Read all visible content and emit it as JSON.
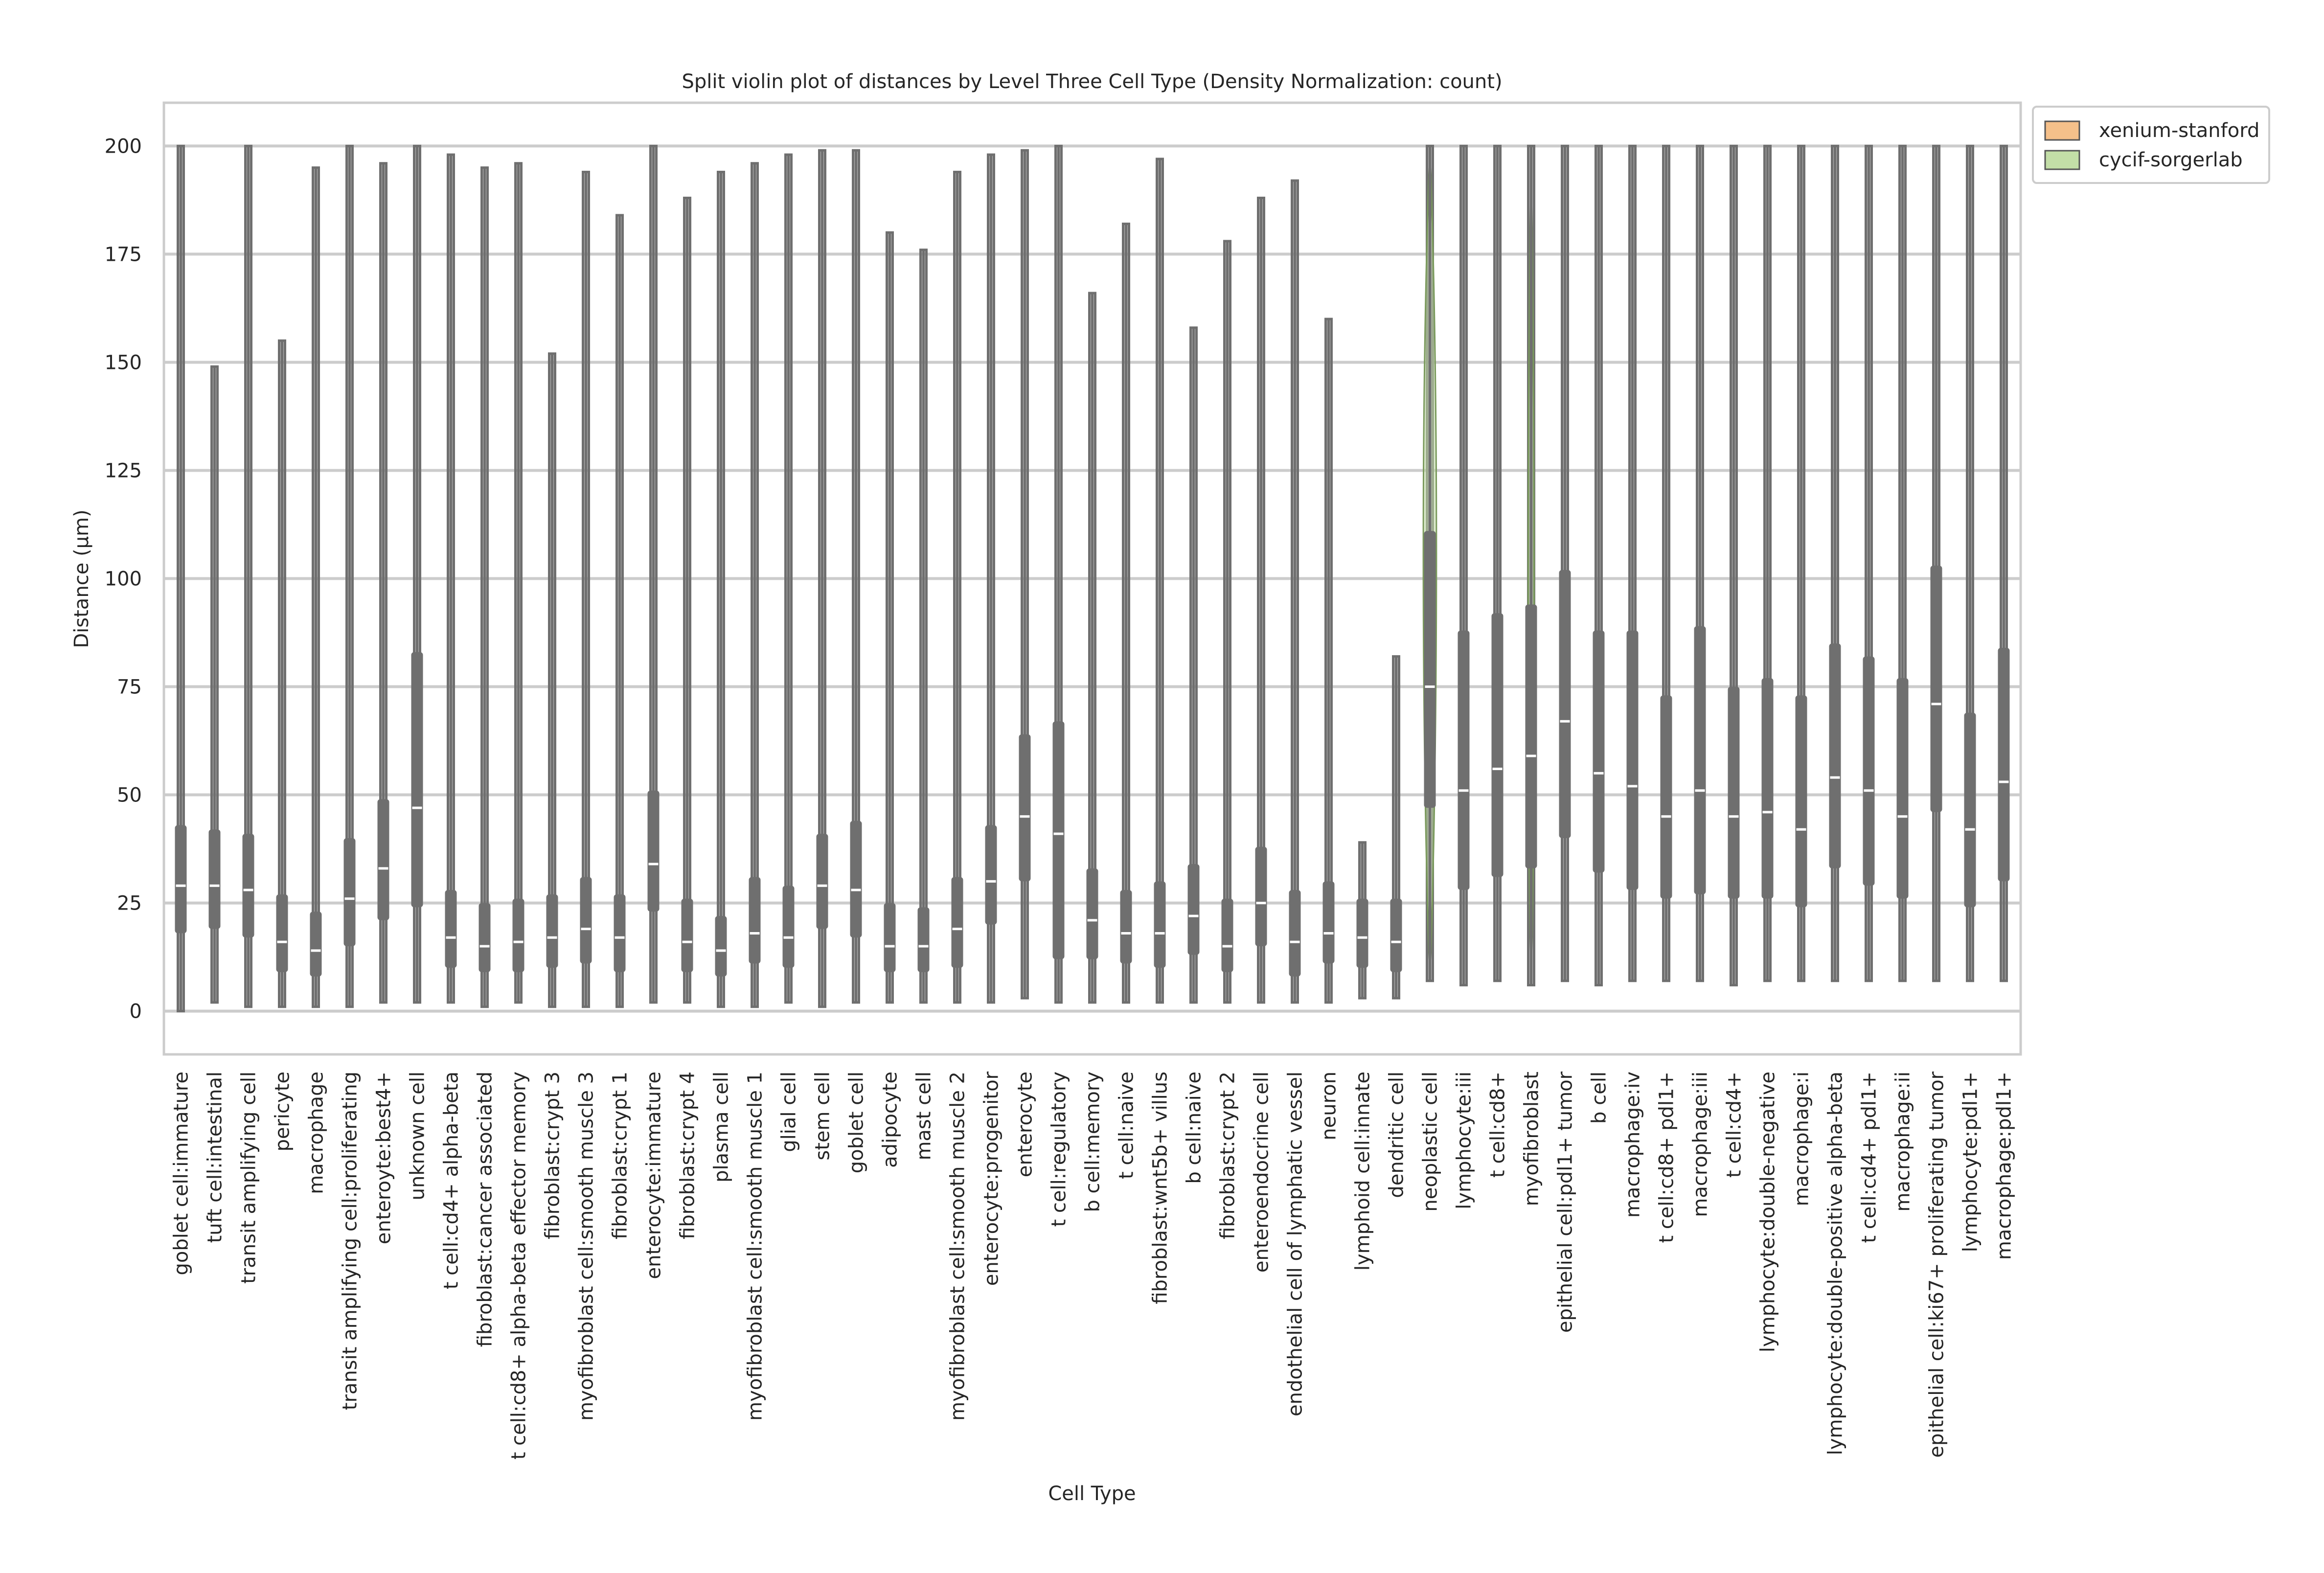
{
  "chart_data": {
    "type": "violin",
    "title": "Split violin plot of distances by Level Three Cell Type (Density Normalization: count)",
    "xlabel": "Cell Type",
    "ylabel": "Distance (µm)",
    "ylim": [
      -10,
      210
    ],
    "yticks": [
      0,
      25,
      50,
      75,
      100,
      125,
      150,
      175,
      200
    ],
    "grid": true,
    "legend_position": "top-right outside",
    "series": [
      {
        "name": "xenium-stanford",
        "color": "#f5c08a"
      },
      {
        "name": "cycif-sorgerlab",
        "color": "#c3dea7"
      }
    ],
    "box_color": "#6f6f6f",
    "categories": [
      {
        "label": "goblet cell:immature",
        "min": 0,
        "q1": 18,
        "median": 29,
        "q3": 43,
        "max": 200
      },
      {
        "label": "tuft cell:intestinal",
        "min": 2,
        "q1": 19,
        "median": 29,
        "q3": 42,
        "max": 149
      },
      {
        "label": "transit amplifying cell",
        "min": 1,
        "q1": 17,
        "median": 28,
        "q3": 41,
        "max": 200
      },
      {
        "label": "pericyte",
        "min": 1,
        "q1": 9,
        "median": 16,
        "q3": 27,
        "max": 155
      },
      {
        "label": "macrophage",
        "min": 1,
        "q1": 8,
        "median": 14,
        "q3": 23,
        "max": 195
      },
      {
        "label": "transit amplifying cell:proliferating",
        "min": 1,
        "q1": 15,
        "median": 26,
        "q3": 40,
        "max": 200
      },
      {
        "label": "enteroyte:best4+",
        "min": 2,
        "q1": 21,
        "median": 33,
        "q3": 49,
        "max": 196
      },
      {
        "label": "unknown cell",
        "min": 2,
        "q1": 24,
        "median": 47,
        "q3": 83,
        "max": 200
      },
      {
        "label": "t cell:cd4+ alpha-beta",
        "min": 2,
        "q1": 10,
        "median": 17,
        "q3": 28,
        "max": 198
      },
      {
        "label": "fibroblast:cancer associated",
        "min": 1,
        "q1": 9,
        "median": 15,
        "q3": 25,
        "max": 195
      },
      {
        "label": "t cell:cd8+ alpha-beta effector memory",
        "min": 2,
        "q1": 9,
        "median": 16,
        "q3": 26,
        "max": 196
      },
      {
        "label": "fibroblast:crypt 3",
        "min": 1,
        "q1": 10,
        "median": 17,
        "q3": 27,
        "max": 152
      },
      {
        "label": "myofibroblast cell:smooth muscle 3",
        "min": 1,
        "q1": 11,
        "median": 19,
        "q3": 31,
        "max": 194
      },
      {
        "label": "fibroblast:crypt 1",
        "min": 1,
        "q1": 9,
        "median": 17,
        "q3": 27,
        "max": 184
      },
      {
        "label": "enterocyte:immature",
        "min": 2,
        "q1": 23,
        "median": 34,
        "q3": 51,
        "max": 200
      },
      {
        "label": "fibroblast:crypt 4",
        "min": 2,
        "q1": 9,
        "median": 16,
        "q3": 26,
        "max": 188
      },
      {
        "label": "plasma cell",
        "min": 1,
        "q1": 8,
        "median": 14,
        "q3": 22,
        "max": 194
      },
      {
        "label": "myofibroblast cell:smooth muscle 1",
        "min": 1,
        "q1": 11,
        "median": 18,
        "q3": 31,
        "max": 196
      },
      {
        "label": "glial cell",
        "min": 2,
        "q1": 10,
        "median": 17,
        "q3": 29,
        "max": 198
      },
      {
        "label": "stem cell",
        "min": 1,
        "q1": 19,
        "median": 29,
        "q3": 41,
        "max": 199
      },
      {
        "label": "goblet cell",
        "min": 2,
        "q1": 17,
        "median": 28,
        "q3": 44,
        "max": 199
      },
      {
        "label": "adipocyte",
        "min": 2,
        "q1": 9,
        "median": 15,
        "q3": 25,
        "max": 180
      },
      {
        "label": "mast cell",
        "min": 2,
        "q1": 9,
        "median": 15,
        "q3": 24,
        "max": 176
      },
      {
        "label": "myofibroblast cell:smooth muscle 2",
        "min": 2,
        "q1": 10,
        "median": 19,
        "q3": 31,
        "max": 194
      },
      {
        "label": "enterocyte:progenitor",
        "min": 2,
        "q1": 20,
        "median": 30,
        "q3": 43,
        "max": 198
      },
      {
        "label": "enterocyte",
        "min": 3,
        "q1": 30,
        "median": 45,
        "q3": 64,
        "max": 199
      },
      {
        "label": "t cell:regulatory",
        "min": 2,
        "q1": 12,
        "median": 41,
        "q3": 67,
        "max": 200
      },
      {
        "label": "b cell:memory",
        "min": 2,
        "q1": 12,
        "median": 21,
        "q3": 33,
        "max": 166
      },
      {
        "label": "t cell:naive",
        "min": 2,
        "q1": 11,
        "median": 18,
        "q3": 28,
        "max": 182
      },
      {
        "label": "fibroblast:wnt5b+ villus",
        "min": 2,
        "q1": 10,
        "median": 18,
        "q3": 30,
        "max": 197
      },
      {
        "label": "b cell:naive",
        "min": 2,
        "q1": 13,
        "median": 22,
        "q3": 34,
        "max": 158
      },
      {
        "label": "fibroblast:crypt 2",
        "min": 2,
        "q1": 9,
        "median": 15,
        "q3": 26,
        "max": 178
      },
      {
        "label": "enteroendocrine cell",
        "min": 2,
        "q1": 15,
        "median": 25,
        "q3": 38,
        "max": 188
      },
      {
        "label": "endothelial cell of lymphatic vessel",
        "min": 2,
        "q1": 8,
        "median": 16,
        "q3": 28,
        "max": 192
      },
      {
        "label": "neuron",
        "min": 2,
        "q1": 11,
        "median": 18,
        "q3": 30,
        "max": 160
      },
      {
        "label": "lymphoid cell:innate",
        "min": 3,
        "q1": 10,
        "median": 17,
        "q3": 26,
        "max": 39
      },
      {
        "label": "dendritic cell",
        "min": 3,
        "q1": 9,
        "median": 16,
        "q3": 26,
        "max": 82
      },
      {
        "label": "neoplastic cell",
        "min": 7,
        "q1": 47,
        "median": 75,
        "q3": 111,
        "max": 200
      },
      {
        "label": "lymphocyte:iii",
        "min": 6,
        "q1": 28,
        "median": 51,
        "q3": 88,
        "max": 200
      },
      {
        "label": "t cell:cd8+",
        "min": 7,
        "q1": 31,
        "median": 56,
        "q3": 92,
        "max": 200
      },
      {
        "label": "myofibroblast",
        "min": 6,
        "q1": 33,
        "median": 59,
        "q3": 94,
        "max": 200
      },
      {
        "label": "epithelial cell:pdl1+ tumor",
        "min": 7,
        "q1": 40,
        "median": 67,
        "q3": 102,
        "max": 200
      },
      {
        "label": "b cell",
        "min": 6,
        "q1": 32,
        "median": 55,
        "q3": 88,
        "max": 200
      },
      {
        "label": "macrophage:iv",
        "min": 7,
        "q1": 28,
        "median": 52,
        "q3": 88,
        "max": 200
      },
      {
        "label": "t cell:cd8+ pdl1+",
        "min": 7,
        "q1": 26,
        "median": 45,
        "q3": 73,
        "max": 200
      },
      {
        "label": "macrophage:iii",
        "min": 7,
        "q1": 27,
        "median": 51,
        "q3": 89,
        "max": 200
      },
      {
        "label": "t cell:cd4+",
        "min": 6,
        "q1": 26,
        "median": 45,
        "q3": 75,
        "max": 200
      },
      {
        "label": "lymphocyte:double-negative",
        "min": 7,
        "q1": 26,
        "median": 46,
        "q3": 77,
        "max": 200
      },
      {
        "label": "macrophage:i",
        "min": 7,
        "q1": 24,
        "median": 42,
        "q3": 73,
        "max": 200
      },
      {
        "label": "lymphocyte:double-positive alpha-beta",
        "min": 7,
        "q1": 33,
        "median": 54,
        "q3": 85,
        "max": 200
      },
      {
        "label": "t cell:cd4+ pdl1+",
        "min": 7,
        "q1": 29,
        "median": 51,
        "q3": 82,
        "max": 200
      },
      {
        "label": "macrophage:ii",
        "min": 7,
        "q1": 26,
        "median": 45,
        "q3": 77,
        "max": 200
      },
      {
        "label": "epithelial cell:ki67+ proliferating tumor",
        "min": 7,
        "q1": 46,
        "median": 71,
        "q3": 103,
        "max": 200
      },
      {
        "label": "lymphocyte:pdl1+",
        "min": 7,
        "q1": 24,
        "median": 42,
        "q3": 69,
        "max": 200
      },
      {
        "label": "macrophage:pdl1+",
        "min": 7,
        "q1": 30,
        "median": 53,
        "q3": 84,
        "max": 200
      }
    ]
  }
}
